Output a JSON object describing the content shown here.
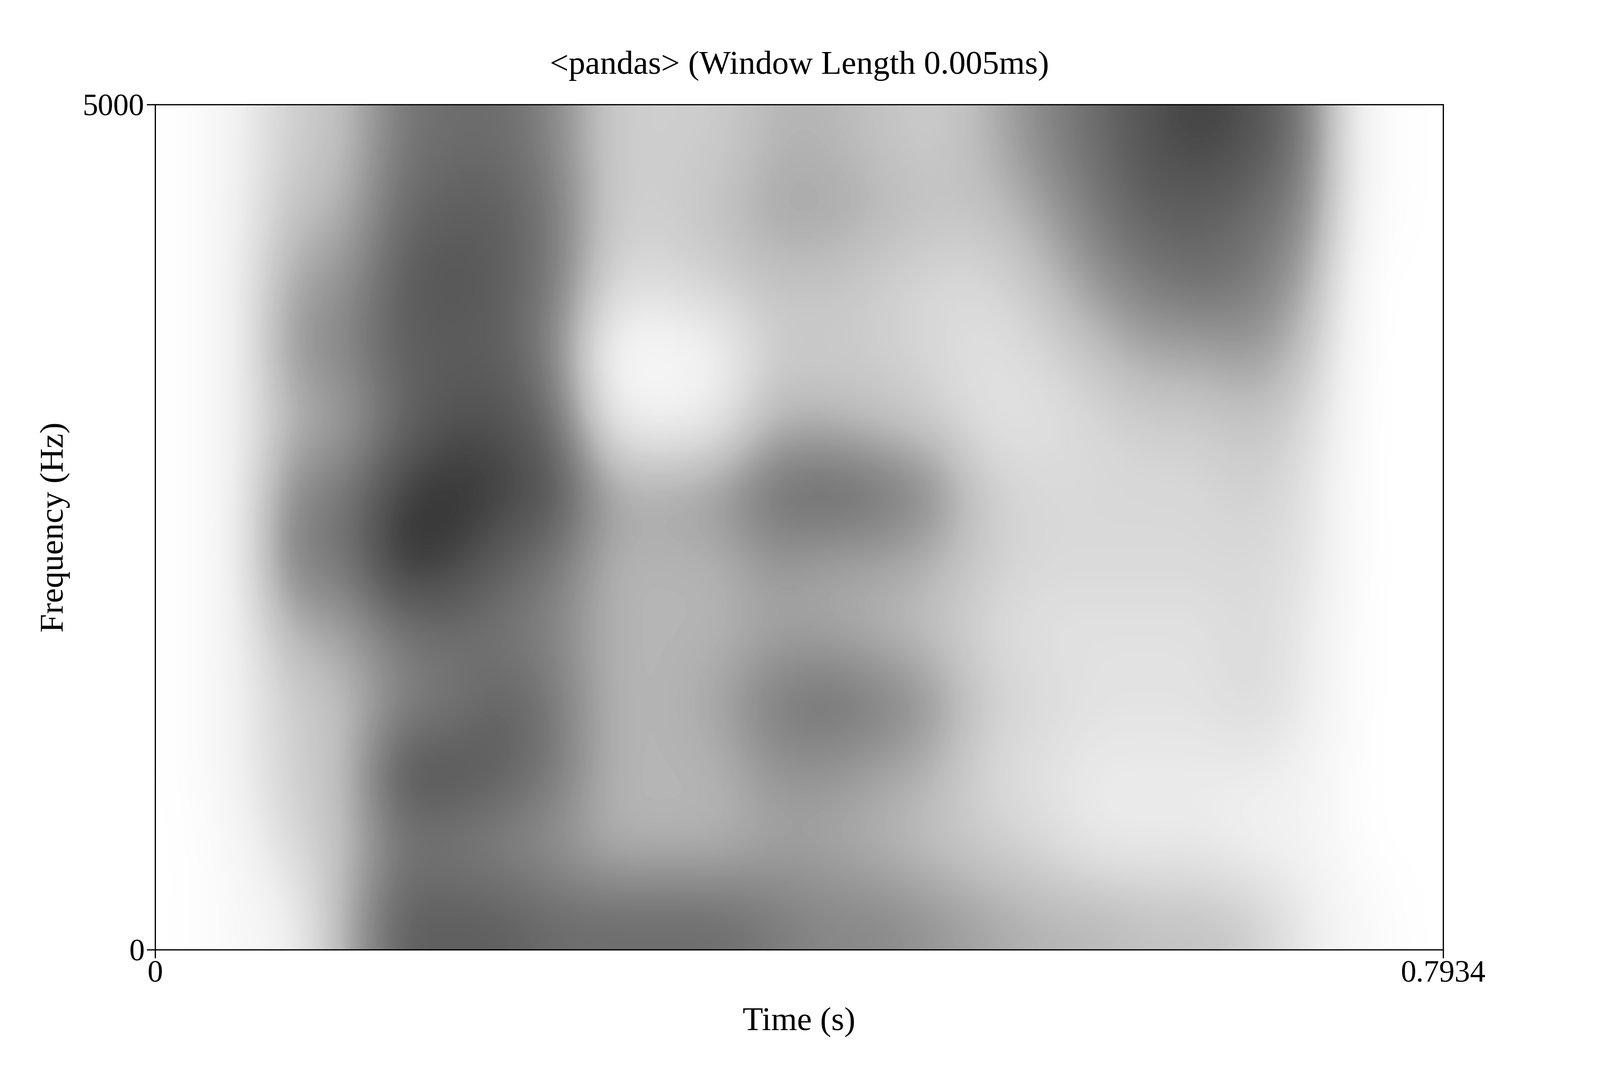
{
  "chart_data": {
    "type": "spectrogram",
    "title": "<pandas> (Window Length 0.005ms)",
    "x_label": "Time (s)",
    "y_label": "Frequency (Hz)",
    "xlim": [
      0,
      0.7934
    ],
    "ylim": [
      0,
      5000
    ],
    "xticks": [
      0,
      0.7934
    ],
    "yticks": [
      0,
      5000
    ],
    "color": "Greys",
    "color_range": [
      0,
      100
    ],
    "cells": [
      [
        0,
        0,
        0,
        0,
        0,
        0,
        0,
        0,
        0,
        0,
        0,
        0
      ],
      [
        5,
        5,
        10,
        10,
        10,
        10,
        10,
        10,
        10,
        10,
        10,
        10
      ],
      [
        10,
        25,
        30,
        30,
        40,
        60,
        55,
        40,
        50,
        45,
        35,
        30
      ],
      [
        40,
        35,
        35,
        35,
        45,
        60,
        60,
        45,
        55,
        50,
        40,
        35
      ],
      [
        70,
        60,
        75,
        55,
        60,
        85,
        80,
        65,
        70,
        70,
        65,
        60
      ],
      [
        70,
        60,
        75,
        60,
        65,
        80,
        85,
        75,
        70,
        75,
        70,
        65
      ],
      [
        70,
        55,
        70,
        70,
        60,
        70,
        80,
        75,
        70,
        70,
        70,
        65
      ],
      [
        65,
        50,
        60,
        60,
        55,
        60,
        75,
        65,
        55,
        60,
        60,
        55
      ],
      [
        65,
        40,
        40,
        40,
        40,
        40,
        45,
        15,
        5,
        25,
        30,
        30
      ],
      [
        65,
        40,
        40,
        40,
        40,
        40,
        45,
        10,
        5,
        25,
        30,
        30
      ],
      [
        65,
        40,
        40,
        45,
        40,
        40,
        50,
        15,
        10,
        30,
        35,
        30
      ],
      [
        60,
        45,
        50,
        60,
        45,
        50,
        65,
        40,
        30,
        35,
        45,
        40
      ],
      [
        55,
        45,
        50,
        65,
        45,
        45,
        70,
        40,
        30,
        35,
        45,
        40
      ],
      [
        55,
        40,
        45,
        60,
        40,
        45,
        65,
        35,
        30,
        30,
        40,
        35
      ],
      [
        50,
        35,
        40,
        50,
        35,
        40,
        55,
        30,
        25,
        25,
        35,
        30
      ],
      [
        45,
        30,
        25,
        30,
        25,
        30,
        30,
        20,
        20,
        25,
        35,
        40
      ],
      [
        40,
        25,
        20,
        25,
        20,
        25,
        25,
        20,
        25,
        35,
        45,
        55
      ],
      [
        40,
        15,
        15,
        20,
        20,
        25,
        25,
        25,
        35,
        50,
        60,
        65
      ],
      [
        35,
        15,
        15,
        20,
        20,
        25,
        25,
        30,
        45,
        60,
        70,
        75
      ],
      [
        35,
        15,
        15,
        20,
        20,
        25,
        25,
        30,
        45,
        65,
        70,
        80
      ],
      [
        30,
        10,
        15,
        25,
        25,
        25,
        30,
        35,
        50,
        60,
        65,
        75
      ],
      [
        15,
        10,
        10,
        15,
        15,
        20,
        20,
        25,
        35,
        45,
        55,
        60
      ],
      [
        5,
        0,
        0,
        0,
        0,
        0,
        0,
        0,
        0,
        0,
        5,
        5
      ],
      [
        0,
        0,
        0,
        0,
        0,
        0,
        0,
        0,
        0,
        0,
        0,
        0
      ]
    ]
  }
}
